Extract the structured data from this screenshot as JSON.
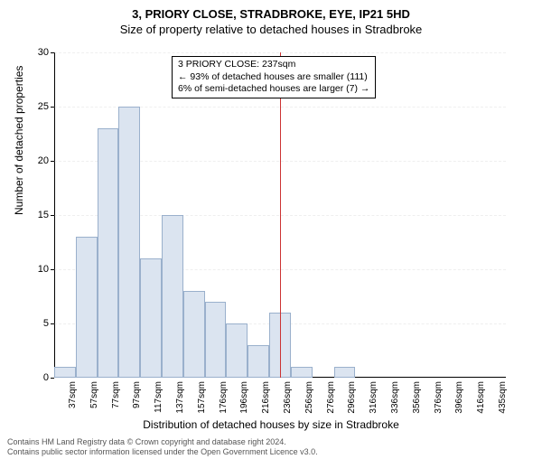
{
  "title_line1": "3, PRIORY CLOSE, STRADBROKE, EYE, IP21 5HD",
  "title_line2": "Size of property relative to detached houses in Stradbroke",
  "chart": {
    "type": "histogram",
    "ylabel": "Number of detached properties",
    "xlabel": "Distribution of detached houses by size in Stradbroke",
    "ylim": [
      0,
      30
    ],
    "ytick_step": 5,
    "x_categories": [
      "37sqm",
      "57sqm",
      "77sqm",
      "97sqm",
      "117sqm",
      "137sqm",
      "157sqm",
      "176sqm",
      "196sqm",
      "216sqm",
      "236sqm",
      "256sqm",
      "276sqm",
      "296sqm",
      "316sqm",
      "336sqm",
      "356sqm",
      "376sqm",
      "396sqm",
      "416sqm",
      "435sqm"
    ],
    "values": [
      1,
      13,
      23,
      25,
      11,
      15,
      8,
      7,
      5,
      3,
      6,
      1,
      0,
      1,
      0,
      0,
      0,
      0,
      0,
      0,
      0
    ],
    "bar_fill": "#dbe4f0",
    "bar_stroke": "#9ab0cc",
    "grid_color": "#cccccc",
    "background_color": "#ffffff",
    "reference_line": {
      "index": 10,
      "color": "#cc3333"
    },
    "annotation": {
      "line1": "3 PRIORY CLOSE: 237sqm",
      "line2": "← 93% of detached houses are smaller (111)",
      "line3": "6% of semi-detached houses are larger (7) →",
      "border_color": "#000000",
      "background": "#ffffff",
      "fontsize": 10.5
    },
    "title_fontsize": 13,
    "label_fontsize": 12,
    "tick_fontsize": 11
  },
  "footer": {
    "line1": "Contains HM Land Registry data © Crown copyright and database right 2024.",
    "line2": "Contains public sector information licensed under the Open Government Licence v3.0."
  }
}
